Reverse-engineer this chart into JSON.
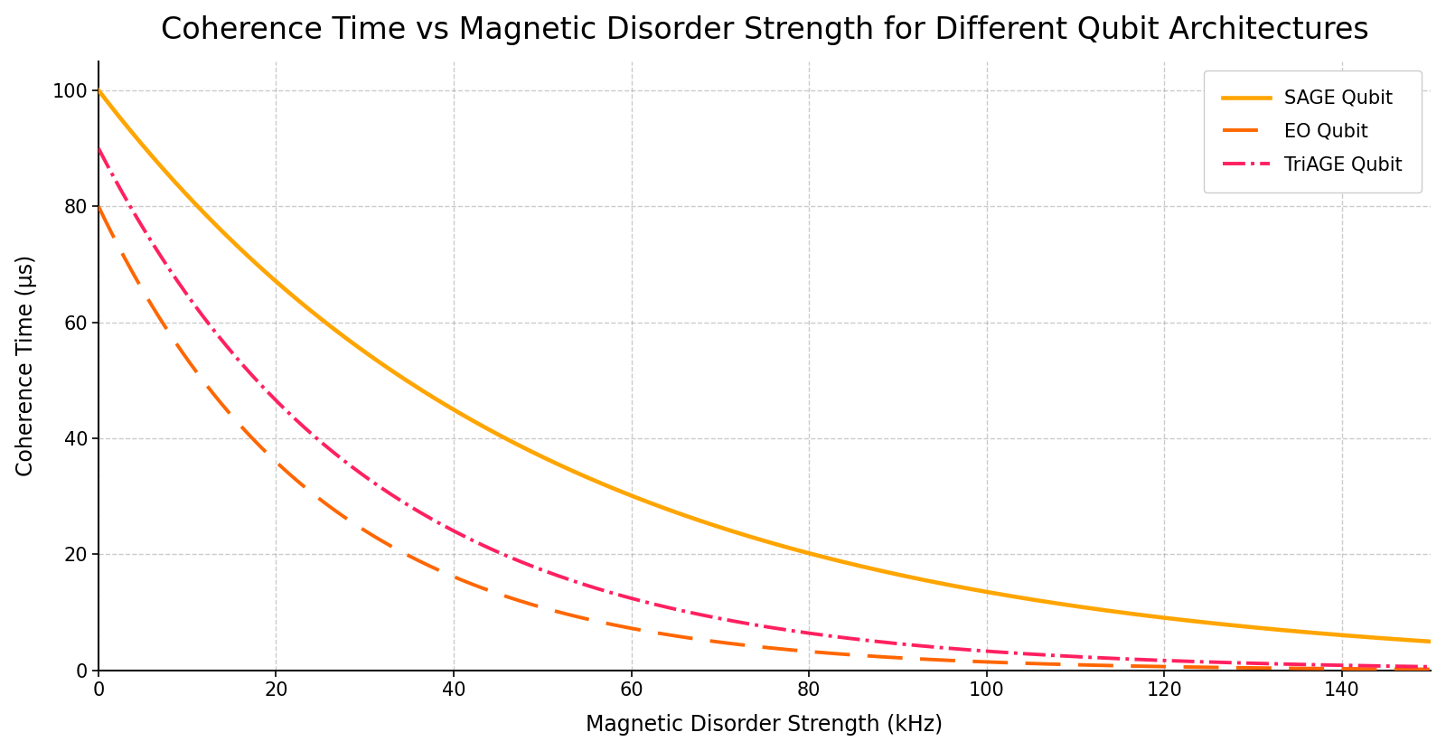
{
  "title": "Coherence Time vs Magnetic Disorder Strength for Different Qubit Architectures",
  "xlabel": "Magnetic Disorder Strength (kHz)",
  "ylabel": "Coherence Time (μs)",
  "xlim": [
    0,
    150
  ],
  "ylim": [
    0,
    105
  ],
  "x_ticks": [
    0,
    20,
    40,
    60,
    80,
    100,
    120,
    140
  ],
  "y_ticks": [
    0,
    20,
    40,
    60,
    80,
    100
  ],
  "sage_color": "#FFA500",
  "eo_color": "#FF6600",
  "triage_color": "#FF2060",
  "sage_label": "SAGE Qubit",
  "eo_label": "EO Qubit",
  "triage_label": "TriAGE Qubit",
  "sage_A": 100,
  "sage_k": 0.02,
  "eo_A": 80,
  "eo_k": 0.04,
  "triage_A": 90,
  "triage_k": 0.033,
  "background_color": "#ffffff",
  "grid_color": "#999999",
  "title_fontsize": 24,
  "label_fontsize": 17,
  "tick_fontsize": 15,
  "legend_fontsize": 15,
  "line_width": 2.8
}
